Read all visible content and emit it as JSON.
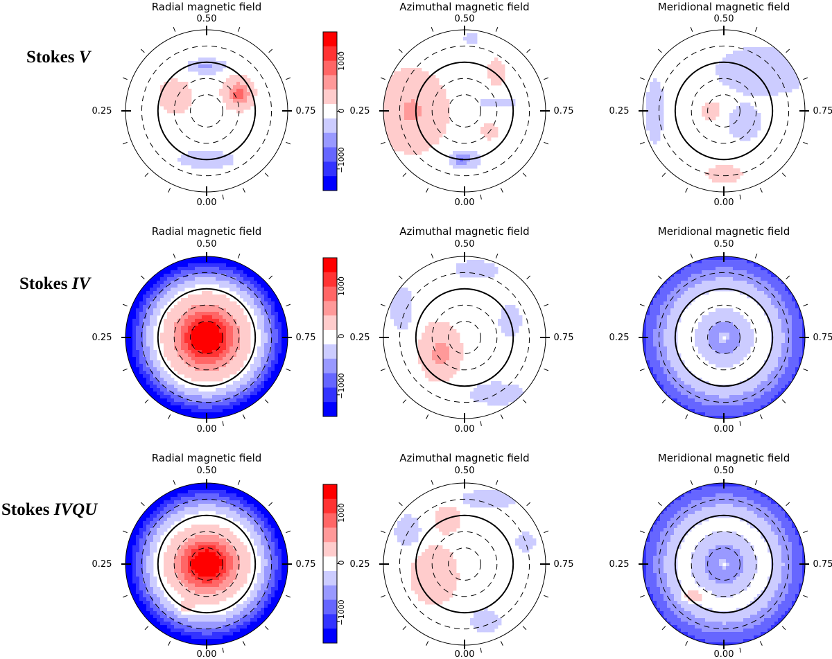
{
  "row_labels": [
    {
      "prefix": "Stokes ",
      "emph": "V"
    },
    {
      "prefix": "Stokes ",
      "emph": "IV"
    },
    {
      "prefix": "Stokes ",
      "emph": "IVQU"
    }
  ],
  "column_titles": [
    "Radial magnetic field",
    "Azimuthal magnetic field",
    "Meridional magnetic field"
  ],
  "phase_labels": {
    "top": "0.50",
    "left": "0.25",
    "right": "0.75",
    "bottom": "0.00"
  },
  "colorbar": {
    "ticks": [
      "1000",
      "0",
      "−1000"
    ],
    "colors": [
      "#ff0000",
      "#ff3333",
      "#ff6666",
      "#ff9999",
      "#ffcccc",
      "#ffffff",
      "#ccccff",
      "#9999ff",
      "#6666ff",
      "#3333ff",
      "#0000ff"
    ]
  },
  "maps": [
    {
      "row": 0,
      "col": 0,
      "ring": "none",
      "blobs": [
        {
          "a": 90,
          "r": 0.55,
          "sx": 0.16,
          "sy": 0.06,
          "v": -0.35
        },
        {
          "a": 155,
          "r": 0.42,
          "sx": 0.14,
          "sy": 0.14,
          "v": 0.3
        },
        {
          "a": 30,
          "r": 0.45,
          "sx": 0.13,
          "sy": 0.14,
          "v": 0.4
        },
        {
          "a": 25,
          "r": 0.45,
          "sx": 0.06,
          "sy": 0.06,
          "v": 0.3
        },
        {
          "a": 270,
          "r": 0.6,
          "sx": 0.25,
          "sy": 0.08,
          "v": -0.25
        }
      ]
    },
    {
      "row": 0,
      "col": 1,
      "ring": "none",
      "blobs": [
        {
          "a": 180,
          "r": 0.65,
          "sx": 0.3,
          "sy": 0.35,
          "v": 0.32
        },
        {
          "a": 270,
          "r": 0.6,
          "sx": 0.12,
          "sy": 0.08,
          "v": -0.35
        },
        {
          "a": 265,
          "r": 0.6,
          "sx": 0.05,
          "sy": 0.05,
          "v": -0.25
        },
        {
          "a": 15,
          "r": 0.4,
          "sx": 0.2,
          "sy": 0.05,
          "v": -0.2
        },
        {
          "a": 50,
          "r": 0.62,
          "sx": 0.08,
          "sy": 0.12,
          "v": 0.25
        },
        {
          "a": 320,
          "r": 0.4,
          "sx": 0.07,
          "sy": 0.07,
          "v": 0.25
        },
        {
          "a": 85,
          "r": 0.9,
          "sx": 0.08,
          "sy": 0.05,
          "v": -0.2
        }
      ]
    },
    {
      "row": 0,
      "col": 2,
      "ring": "none",
      "blobs": [
        {
          "a": 45,
          "r": 0.7,
          "sx": 0.4,
          "sy": 0.2,
          "v": -0.3
        },
        {
          "a": 330,
          "r": 0.3,
          "sx": 0.15,
          "sy": 0.15,
          "v": -0.25
        },
        {
          "a": 180,
          "r": 0.85,
          "sx": 0.08,
          "sy": 0.3,
          "v": -0.25
        },
        {
          "a": 180,
          "r": 0.15,
          "sx": 0.08,
          "sy": 0.08,
          "v": 0.3
        },
        {
          "a": 270,
          "r": 0.78,
          "sx": 0.15,
          "sy": 0.07,
          "v": 0.3
        }
      ]
    },
    {
      "row": 1,
      "col": 0,
      "ring": "strong",
      "blobs": [
        {
          "a": 0,
          "r": 0,
          "sx": 0.25,
          "sy": 0.25,
          "v": 1.2
        }
      ]
    },
    {
      "row": 1,
      "col": 1,
      "ring": "none",
      "blobs": [
        {
          "a": 210,
          "r": 0.35,
          "sx": 0.18,
          "sy": 0.25,
          "v": 0.32
        },
        {
          "a": 220,
          "r": 0.35,
          "sx": 0.06,
          "sy": 0.06,
          "v": 0.2
        },
        {
          "a": 80,
          "r": 0.85,
          "sx": 0.2,
          "sy": 0.08,
          "v": -0.25
        },
        {
          "a": 155,
          "r": 0.85,
          "sx": 0.1,
          "sy": 0.2,
          "v": -0.25
        },
        {
          "a": 20,
          "r": 0.6,
          "sx": 0.1,
          "sy": 0.15,
          "v": -0.25
        },
        {
          "a": 300,
          "r": 0.8,
          "sx": 0.25,
          "sy": 0.1,
          "v": -0.25
        }
      ]
    },
    {
      "row": 1,
      "col": 2,
      "ring": "medium",
      "blobs": [
        {
          "a": 0,
          "r": 0,
          "sx": 0.2,
          "sy": 0.2,
          "v": -0.5
        },
        {
          "a": 0,
          "r": 0,
          "sx": 0.04,
          "sy": 0.04,
          "v": 0.6
        }
      ]
    },
    {
      "row": 2,
      "col": 0,
      "ring": "strong",
      "blobs": [
        {
          "a": 0,
          "r": 0,
          "sx": 0.24,
          "sy": 0.22,
          "v": 1.2
        },
        {
          "a": 245,
          "r": 0.6,
          "sx": 0.05,
          "sy": 0.05,
          "v": 0.3
        }
      ]
    },
    {
      "row": 2,
      "col": 1,
      "ring": "none",
      "blobs": [
        {
          "a": 200,
          "r": 0.4,
          "sx": 0.2,
          "sy": 0.25,
          "v": 0.3
        },
        {
          "a": 110,
          "r": 0.6,
          "sx": 0.12,
          "sy": 0.12,
          "v": 0.25
        },
        {
          "a": 70,
          "r": 0.85,
          "sx": 0.25,
          "sy": 0.08,
          "v": -0.25
        },
        {
          "a": 150,
          "r": 0.8,
          "sx": 0.12,
          "sy": 0.15,
          "v": -0.25
        },
        {
          "a": 290,
          "r": 0.75,
          "sx": 0.12,
          "sy": 0.1,
          "v": -0.3
        },
        {
          "a": 20,
          "r": 0.8,
          "sx": 0.1,
          "sy": 0.1,
          "v": -0.2
        }
      ]
    },
    {
      "row": 2,
      "col": 2,
      "ring": "medium",
      "blobs": [
        {
          "a": 0,
          "r": 0,
          "sx": 0.22,
          "sy": 0.22,
          "v": -0.55
        },
        {
          "a": 0,
          "r": 0,
          "sx": 0.04,
          "sy": 0.04,
          "v": 0.6
        },
        {
          "a": 225,
          "r": 0.55,
          "sx": 0.1,
          "sy": 0.05,
          "v": 0.35
        }
      ]
    }
  ]
}
